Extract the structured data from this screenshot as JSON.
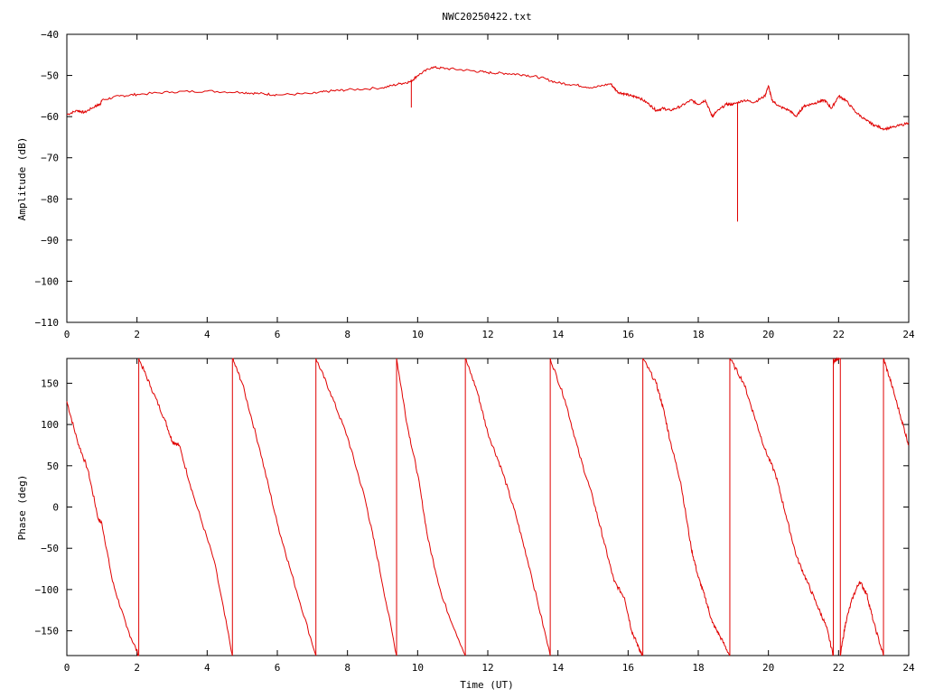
{
  "chart_data": [
    {
      "type": "line",
      "title": "NWC20250422.txt",
      "xlabel": "",
      "ylabel": "Amplitude (dB)",
      "xlim": [
        0,
        24
      ],
      "ylim": [
        -110,
        -40
      ],
      "xticks": [
        0,
        2,
        4,
        6,
        8,
        10,
        12,
        14,
        16,
        18,
        20,
        22,
        24
      ],
      "yticks": [
        -40,
        -50,
        -60,
        -70,
        -80,
        -90,
        -100,
        -110
      ],
      "ytick_labels": [
        "−40",
        "−50",
        "−60",
        "−70",
        "−80",
        "−90",
        "−100",
        "−110"
      ],
      "grid": false,
      "color": "#e00000",
      "x": [
        0,
        0.3,
        0.5,
        0.8,
        0.95,
        1.0,
        1.5,
        2.0,
        3.0,
        4.0,
        5.0,
        5.5,
        6.0,
        7.0,
        7.5,
        8.0,
        9.0,
        9.5,
        9.8,
        10.0,
        10.4,
        10.8,
        11.5,
        12.0,
        12.5,
        13.0,
        13.5,
        14.0,
        14.5,
        15.0,
        15.5,
        15.7,
        15.9,
        16.1,
        16.3,
        16.6,
        16.8,
        17.0,
        17.2,
        17.5,
        17.8,
        18.0,
        18.2,
        18.4,
        18.5,
        18.8,
        19.0,
        19.3,
        19.6,
        19.9,
        20.0,
        20.1,
        20.3,
        20.6,
        20.8,
        21.0,
        21.2,
        21.4,
        21.6,
        21.8,
        22.0,
        22.2,
        22.5,
        22.8,
        23.0,
        23.3,
        23.6,
        24.0
      ],
      "y": [
        -59.5,
        -58.5,
        -59,
        -57.5,
        -57,
        -56,
        -55,
        -54.6,
        -54,
        -53.8,
        -54.1,
        -54.4,
        -54.7,
        -54.4,
        -53.8,
        -53.5,
        -53,
        -52,
        -51.5,
        -50,
        -48,
        -48.3,
        -48.8,
        -49.3,
        -49.5,
        -49.8,
        -50.5,
        -51.8,
        -52.3,
        -53,
        -52,
        -54,
        -54.5,
        -55,
        -55.3,
        -57,
        -58.5,
        -58,
        -58.5,
        -57.5,
        -56,
        -57,
        -56,
        -60,
        -59,
        -57,
        -57,
        -56,
        -56.5,
        -55,
        -52.5,
        -56,
        -57.5,
        -58.5,
        -60,
        -57.5,
        -57,
        -56.5,
        -56,
        -58,
        -55,
        -56,
        -59,
        -61,
        -62,
        -63,
        -62.5,
        -61.5
      ],
      "spikes": [
        {
          "x": 9.82,
          "y": -57.8
        },
        {
          "x": 19.12,
          "y": -85.5
        }
      ]
    },
    {
      "type": "line",
      "title": "",
      "xlabel": "Time (UT)",
      "ylabel": "Phase (deg)",
      "xlim": [
        0,
        24
      ],
      "ylim": [
        -180,
        180
      ],
      "xticks": [
        0,
        2,
        4,
        6,
        8,
        10,
        12,
        14,
        16,
        18,
        20,
        22,
        24
      ],
      "yticks": [
        150,
        100,
        50,
        0,
        -50,
        -100,
        -150
      ],
      "ytick_labels": [
        "150",
        "100",
        "50",
        "0",
        "−50",
        "−100",
        "−150"
      ],
      "grid": false,
      "color": "#e00000",
      "segments": [
        {
          "x": [
            0,
            0.3,
            0.6,
            0.9,
            1.0,
            1.3,
            1.7,
            2.05
          ],
          "y": [
            128,
            80,
            45,
            -15,
            -20,
            -90,
            -145,
            -180
          ]
        },
        {
          "x": [
            2.05,
            2.4,
            2.8,
            3.0,
            3.2,
            3.6,
            4.2,
            4.72
          ],
          "y": [
            180,
            145,
            105,
            80,
            75,
            15,
            -65,
            -180
          ]
        },
        {
          "x": [
            4.72,
            5.0,
            5.5,
            6.0,
            6.4,
            7.1
          ],
          "y": [
            180,
            150,
            70,
            -20,
            -80,
            -180
          ]
        },
        {
          "x": [
            7.1,
            7.5,
            8.0,
            8.5,
            8.8,
            9.4
          ],
          "y": [
            180,
            140,
            85,
            10,
            -50,
            -180
          ]
        },
        {
          "x": [
            9.4,
            9.7,
            10.0,
            10.3,
            10.7,
            11.36
          ],
          "y": [
            180,
            100,
            40,
            -40,
            -110,
            -180
          ]
        },
        {
          "x": [
            11.36,
            11.7,
            12.0,
            12.4,
            12.8,
            13.2,
            13.78
          ],
          "y": [
            180,
            140,
            90,
            45,
            -10,
            -75,
            -180
          ]
        },
        {
          "x": [
            13.78,
            14.2,
            14.6,
            15.0,
            15.3,
            15.6,
            15.9,
            16.1,
            16.3,
            16.4
          ],
          "y": [
            180,
            130,
            65,
            10,
            -40,
            -90,
            -110,
            -150,
            -170,
            -180
          ]
        },
        {
          "x": [
            16.42,
            16.8,
            17.0,
            17.2,
            17.5,
            17.8,
            18.0,
            18.2,
            18.4,
            18.6,
            18.9
          ],
          "y": [
            180,
            150,
            120,
            80,
            30,
            -50,
            -85,
            -110,
            -140,
            -155,
            -180
          ]
        },
        {
          "x": [
            18.9,
            19.3,
            19.6,
            19.9,
            20.2,
            20.5,
            20.8,
            21.1,
            21.4,
            21.65,
            21.85
          ],
          "y": [
            180,
            150,
            110,
            70,
            40,
            -10,
            -60,
            -90,
            -120,
            -145,
            -180
          ]
        },
        {
          "x": [
            21.85,
            21.95,
            22.05
          ],
          "y": [
            175,
            180,
            180
          ]
        },
        {
          "x": [
            22.05,
            22.2,
            22.4,
            22.6,
            22.8,
            23.0,
            23.28
          ],
          "y": [
            -180,
            -140,
            -110,
            -90,
            -105,
            -140,
            -180
          ]
        },
        {
          "x": [
            23.28,
            23.5,
            23.8,
            24.0
          ],
          "y": [
            180,
            150,
            105,
            75
          ]
        }
      ],
      "wrap_lines": [
        2.05,
        4.72,
        7.1,
        9.4,
        11.36,
        13.78,
        16.42,
        18.9,
        21.85,
        22.05,
        23.28
      ]
    }
  ]
}
